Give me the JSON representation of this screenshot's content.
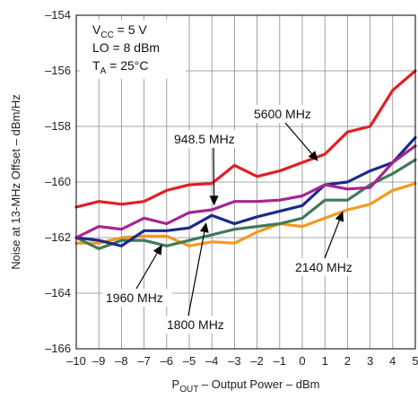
{
  "chart_data": {
    "type": "line",
    "xlabel": {
      "main": "P",
      "sub": "OUT",
      "rest": " – Output Power – dBm"
    },
    "ylabel": "Noise at 13-MHz Offset – dBm/Hz",
    "xlim": [
      -10,
      5
    ],
    "ylim": [
      -166,
      -154
    ],
    "xticks": [
      -10,
      -9,
      -8,
      -7,
      -6,
      -5,
      -4,
      -3,
      -2,
      -1,
      0,
      1,
      2,
      3,
      4,
      5
    ],
    "yticks": [
      -166,
      -164,
      -162,
      -160,
      -158,
      -156,
      -154
    ],
    "xtick_labels": [
      "–10",
      "–9",
      "–8",
      "–7",
      "–6",
      "–5",
      "–4",
      "–3",
      "–2",
      "–1",
      "0",
      "1",
      "2",
      "3",
      "4",
      "5"
    ],
    "ytick_labels": [
      "–166",
      "–164",
      "–162",
      "–160",
      "–158",
      "–156",
      "–154"
    ],
    "grid": true,
    "conditions": {
      "vcc": {
        "main": "V",
        "sub": "CC",
        "rest": " =  5 V"
      },
      "lo": "LO = 8 dBm",
      "ta": {
        "main": "T",
        "sub": "A",
        "rest": " = 25°C"
      }
    },
    "x": [
      -10,
      -9,
      -8,
      -7,
      -6,
      -5,
      -4,
      -3,
      -2,
      -1,
      0,
      1,
      2,
      3,
      4,
      5
    ],
    "series": [
      {
        "name": "5600 MHz",
        "color": "#e31e24",
        "values": [
          -160.9,
          -160.7,
          -160.8,
          -160.7,
          -160.3,
          -160.1,
          -160.05,
          -159.4,
          -159.8,
          -159.6,
          -159.3,
          -159.0,
          -158.2,
          -158.0,
          -156.7,
          -156.0
        ]
      },
      {
        "name": "948.5 MHz",
        "color": "#a5258f",
        "values": [
          -162.0,
          -161.6,
          -161.7,
          -161.3,
          -161.5,
          -161.1,
          -161.0,
          -160.7,
          -160.7,
          -160.65,
          -160.5,
          -160.1,
          -160.25,
          -160.2,
          -159.3,
          -158.7
        ]
      },
      {
        "name": "",
        "color": "#1e2a8a",
        "values": [
          -162.0,
          -162.1,
          -162.3,
          -161.75,
          -161.75,
          -161.65,
          -161.2,
          -161.5,
          -161.25,
          -161.05,
          -160.85,
          -160.1,
          -160.0,
          -159.6,
          -159.3,
          -158.4
        ]
      },
      {
        "name": "1960 MHz",
        "color": "#3e7a5a",
        "values": [
          -162.0,
          -162.4,
          -162.1,
          -162.1,
          -162.3,
          -162.1,
          -161.9,
          -161.7,
          -161.6,
          -161.5,
          -161.3,
          -160.65,
          -160.65,
          -160.1,
          -159.7,
          -159.2
        ]
      },
      {
        "name": "2140 MHz",
        "color": "#f29a1e",
        "values": [
          -162.2,
          -162.2,
          -162.0,
          -161.95,
          -161.95,
          -162.3,
          -162.15,
          -162.2,
          -161.8,
          -161.5,
          -161.6,
          -161.3,
          -161.0,
          -160.8,
          -160.3,
          -160.05
        ]
      }
    ],
    "annotations": [
      {
        "text": "5600 MHz",
        "target_x": 0.7,
        "target_y": -159.25
      },
      {
        "text": "948.5 MHz",
        "target_x": -3.9,
        "target_y": -160.85
      },
      {
        "text": "2140 MHz",
        "target_x": 1.8,
        "target_y": -161.05
      },
      {
        "text": "1960 MHz",
        "target_x": -6.2,
        "target_y": -162.25
      },
      {
        "text": "1800 MHz",
        "target_x": -4.25,
        "target_y": -161.45
      }
    ]
  }
}
